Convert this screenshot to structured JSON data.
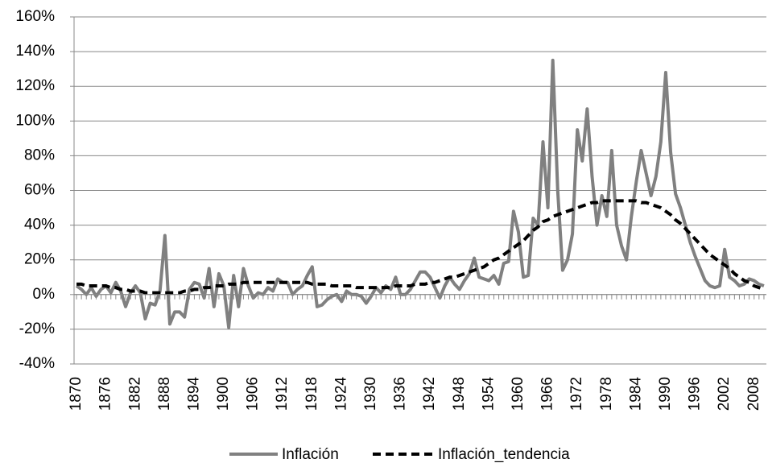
{
  "chart_data": {
    "type": "line",
    "x": [
      1870,
      1871,
      1872,
      1873,
      1874,
      1875,
      1876,
      1877,
      1878,
      1879,
      1880,
      1881,
      1882,
      1883,
      1884,
      1885,
      1886,
      1887,
      1888,
      1889,
      1890,
      1891,
      1892,
      1893,
      1894,
      1895,
      1896,
      1897,
      1898,
      1899,
      1900,
      1901,
      1902,
      1903,
      1904,
      1905,
      1906,
      1907,
      1908,
      1909,
      1910,
      1911,
      1912,
      1913,
      1914,
      1915,
      1916,
      1917,
      1918,
      1919,
      1920,
      1921,
      1922,
      1923,
      1924,
      1925,
      1926,
      1927,
      1928,
      1929,
      1930,
      1931,
      1932,
      1933,
      1934,
      1935,
      1936,
      1937,
      1938,
      1939,
      1940,
      1941,
      1942,
      1943,
      1944,
      1945,
      1946,
      1947,
      1948,
      1949,
      1950,
      1951,
      1952,
      1953,
      1954,
      1955,
      1956,
      1957,
      1958,
      1959,
      1960,
      1961,
      1962,
      1963,
      1964,
      1965,
      1966,
      1967,
      1968,
      1969,
      1970,
      1971,
      1972,
      1973,
      1974,
      1975,
      1976,
      1977,
      1978,
      1979,
      1980,
      1981,
      1982,
      1983,
      1984,
      1985,
      1986,
      1987,
      1988,
      1989,
      1990,
      1991,
      1992,
      1993,
      1994,
      1995,
      1996,
      1997,
      1998,
      1999,
      2000,
      2001,
      2002,
      2003,
      2004,
      2005,
      2006,
      2007,
      2008,
      2009,
      2010
    ],
    "series": [
      {
        "name": "Inflación",
        "color": "#808080",
        "dash": "solid",
        "values": [
          5,
          3,
          0,
          4,
          -1,
          3,
          5,
          1,
          7,
          2,
          -7,
          1,
          5,
          1,
          -14,
          -5,
          -6,
          2,
          34,
          -17,
          -10,
          -10,
          -13,
          3,
          7,
          6,
          -2,
          15,
          -7,
          12,
          5,
          -19,
          11,
          -7,
          15,
          5,
          -2,
          1,
          0,
          4,
          2,
          9,
          7,
          7,
          0,
          3,
          5,
          11,
          16,
          -7,
          -6,
          -3,
          -1,
          0,
          -4,
          2,
          0,
          0,
          -1,
          -5,
          -1,
          4,
          1,
          5,
          3,
          10,
          0,
          0,
          3,
          8,
          13,
          13,
          10,
          4,
          -2,
          5,
          10,
          6,
          3,
          8,
          12,
          21,
          10,
          9,
          8,
          11,
          6,
          18,
          19,
          48,
          36,
          10,
          11,
          44,
          40,
          88,
          50,
          135,
          60,
          14,
          20,
          35,
          95,
          77,
          107,
          68,
          40,
          57,
          45,
          83,
          40,
          28,
          20,
          45,
          65,
          83,
          70,
          57,
          68,
          88,
          128,
          82,
          58,
          50,
          40,
          30,
          22,
          15,
          8,
          5,
          4,
          5,
          26,
          10,
          8,
          5,
          6,
          9,
          8,
          6,
          5
        ]
      },
      {
        "name": "Inflación_tendencia",
        "color": "#000000",
        "dash": "dashed",
        "values": [
          6,
          6,
          5,
          5,
          5,
          5,
          5,
          4,
          4,
          3,
          3,
          2,
          2,
          2,
          1,
          1,
          1,
          1,
          1,
          1,
          1,
          1,
          2,
          2,
          3,
          3,
          4,
          4,
          5,
          5,
          5,
          6,
          6,
          6,
          7,
          7,
          7,
          7,
          7,
          7,
          7,
          7,
          7,
          7,
          7,
          7,
          7,
          7,
          6,
          6,
          6,
          6,
          5,
          5,
          5,
          5,
          5,
          4,
          4,
          4,
          4,
          4,
          4,
          4,
          4,
          5,
          5,
          5,
          5,
          6,
          6,
          6,
          7,
          7,
          8,
          9,
          10,
          10,
          11,
          12,
          13,
          14,
          15,
          16,
          18,
          20,
          21,
          23,
          25,
          27,
          29,
          31,
          34,
          37,
          39,
          42,
          43,
          45,
          46,
          47,
          48,
          49,
          50,
          51,
          52,
          53,
          53,
          54,
          54,
          54,
          54,
          54,
          54,
          54,
          54,
          53,
          53,
          52,
          51,
          50,
          48,
          46,
          43,
          41,
          38,
          35,
          32,
          29,
          26,
          23,
          21,
          19,
          17,
          15,
          12,
          10,
          8,
          7,
          5,
          4,
          3
        ]
      }
    ],
    "xlim": [
      1869.5,
      2010.5
    ],
    "xticks": [
      1870,
      1876,
      1882,
      1888,
      1894,
      1900,
      1906,
      1912,
      1918,
      1924,
      1930,
      1936,
      1942,
      1948,
      1954,
      1960,
      1966,
      1972,
      1978,
      1984,
      1990,
      1996,
      2002,
      2008
    ],
    "ylim": [
      -40,
      160
    ],
    "yticks": [
      {
        "value": -40,
        "label": "-40%"
      },
      {
        "value": -20,
        "label": "-20%"
      },
      {
        "value": 0,
        "label": "0%"
      },
      {
        "value": 20,
        "label": "20%"
      },
      {
        "value": 40,
        "label": "40%"
      },
      {
        "value": 60,
        "label": "60%"
      },
      {
        "value": 80,
        "label": "80%"
      },
      {
        "value": 100,
        "label": "100%"
      },
      {
        "value": 120,
        "label": "120%"
      },
      {
        "value": 140,
        "label": "140%"
      },
      {
        "value": 160,
        "label": "160%"
      }
    ],
    "grid": true,
    "legend": "bottom"
  }
}
